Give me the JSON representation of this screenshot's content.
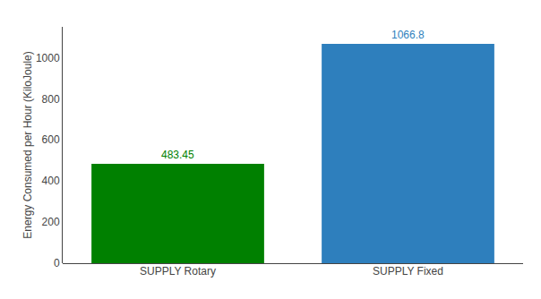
{
  "chart_data": {
    "type": "bar",
    "categories": [
      "SUPPLY Rotary",
      "SUPPLY Fixed"
    ],
    "values": [
      483.45,
      1066.8
    ],
    "colors": [
      "#008000",
      "#2e7fbd"
    ],
    "ylabel": "Energy Consumed per Hour (KiloJoule)",
    "ylim": [
      0,
      1150
    ],
    "yticks": [
      0,
      200,
      400,
      600,
      800,
      1000
    ],
    "data_labels": true,
    "grid": false
  }
}
